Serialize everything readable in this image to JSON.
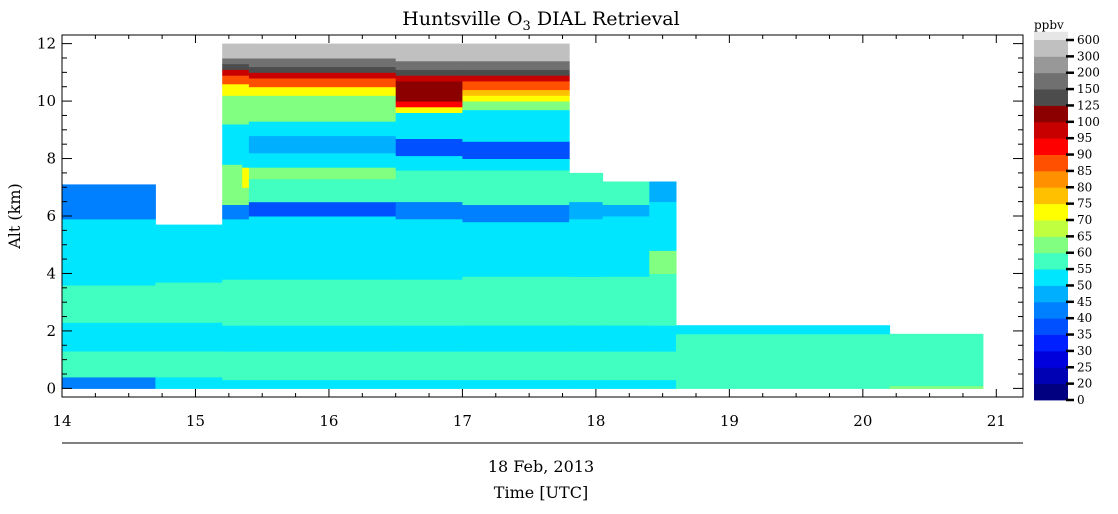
{
  "chart_data": {
    "type": "heatmap",
    "title_prefix": "Huntsville O",
    "title_sub": "3",
    "title_suffix": " DIAL Retrieval",
    "ylabel": "Alt (km)",
    "xlabel_date": "18 Feb, 2013",
    "xlabel": "Time [UTC]",
    "xlim": [
      14,
      21.2
    ],
    "ylim": [
      -0.3,
      12.3
    ],
    "x_ticks": [
      "14",
      "15",
      "16",
      "17",
      "18",
      "19",
      "20",
      "21"
    ],
    "y_ticks": [
      "0",
      "2",
      "4",
      "6",
      "8",
      "10",
      "12"
    ],
    "colorbar": {
      "unit": "ppbv",
      "levels": [
        "0",
        "20",
        "25",
        "30",
        "35",
        "40",
        "45",
        "50",
        "55",
        "60",
        "65",
        "70",
        "75",
        "80",
        "85",
        "90",
        "95",
        "100",
        "125",
        "150",
        "200",
        "300",
        "600"
      ],
      "colors": [
        "#000080",
        "#0000b4",
        "#0000dc",
        "#0020ff",
        "#0050ff",
        "#0080ff",
        "#00b0ff",
        "#00e6ff",
        "#40ffc0",
        "#80ff80",
        "#c0ff40",
        "#ffff00",
        "#ffc000",
        "#ff9000",
        "#ff5000",
        "#ff0000",
        "#c80000",
        "#8c0000",
        "#4c4c4c",
        "#707070",
        "#989898",
        "#c0c0c0",
        "#e6e6e6"
      ]
    },
    "columns": [
      {
        "x0": 14.0,
        "x1": 14.7,
        "top": 7.1,
        "layers": [
          [
            0,
            0.4,
            "#0080ff"
          ],
          [
            0.4,
            1.3,
            "#40ffc0"
          ],
          [
            1.3,
            2.3,
            "#00e6ff"
          ],
          [
            2.3,
            3.6,
            "#40ffc0"
          ],
          [
            3.6,
            5.9,
            "#00e6ff"
          ],
          [
            5.9,
            7.1,
            "#0080ff"
          ]
        ]
      },
      {
        "x0": 14.7,
        "x1": 15.2,
        "top": 5.7,
        "layers": [
          [
            0,
            0.4,
            "#00e6ff"
          ],
          [
            0.4,
            1.3,
            "#40ffc0"
          ],
          [
            1.3,
            2.3,
            "#00e6ff"
          ],
          [
            2.3,
            3.7,
            "#40ffc0"
          ],
          [
            3.7,
            5.7,
            "#00e6ff"
          ]
        ]
      },
      {
        "x0": 15.2,
        "x1": 15.35,
        "top": 12.0,
        "layers": [
          [
            0,
            0.3,
            "#00e6ff"
          ],
          [
            0.3,
            1.3,
            "#40ffc0"
          ],
          [
            1.3,
            2.2,
            "#00e6ff"
          ],
          [
            2.2,
            3.8,
            "#40ffc0"
          ],
          [
            3.8,
            5.9,
            "#00e6ff"
          ],
          [
            5.9,
            6.4,
            "#0080ff"
          ],
          [
            6.4,
            7.8,
            "#80ff80"
          ],
          [
            7.8,
            9.2,
            "#00e6ff"
          ],
          [
            9.2,
            10.2,
            "#80ff80"
          ],
          [
            10.2,
            10.6,
            "#ffff00"
          ],
          [
            10.6,
            10.9,
            "#ff5000"
          ],
          [
            10.9,
            11.1,
            "#c80000"
          ],
          [
            11.1,
            11.3,
            "#4c4c4c"
          ],
          [
            11.3,
            11.5,
            "#707070"
          ],
          [
            11.5,
            12.0,
            "#c0c0c0"
          ]
        ]
      },
      {
        "x0": 15.35,
        "x1": 15.4,
        "top": 12.0,
        "layers": [
          [
            0,
            0.3,
            "#00e6ff"
          ],
          [
            0.3,
            1.3,
            "#40ffc0"
          ],
          [
            1.3,
            2.2,
            "#00e6ff"
          ],
          [
            2.2,
            3.8,
            "#40ffc0"
          ],
          [
            3.8,
            5.9,
            "#00e6ff"
          ],
          [
            5.9,
            6.4,
            "#0080ff"
          ],
          [
            6.4,
            7.0,
            "#80ff80"
          ],
          [
            7.0,
            7.7,
            "#ffff00"
          ],
          [
            7.7,
            9.2,
            "#00e6ff"
          ],
          [
            9.2,
            10.2,
            "#80ff80"
          ],
          [
            10.2,
            10.6,
            "#ffff00"
          ],
          [
            10.6,
            10.9,
            "#ff5000"
          ],
          [
            10.9,
            11.1,
            "#c80000"
          ],
          [
            11.1,
            11.3,
            "#4c4c4c"
          ],
          [
            11.3,
            11.5,
            "#707070"
          ],
          [
            11.5,
            12.0,
            "#c0c0c0"
          ]
        ]
      },
      {
        "x0": 15.4,
        "x1": 16.5,
        "top": 12.0,
        "layers": [
          [
            0,
            0.3,
            "#00e6ff"
          ],
          [
            0.3,
            1.3,
            "#40ffc0"
          ],
          [
            1.3,
            2.2,
            "#00e6ff"
          ],
          [
            2.2,
            3.8,
            "#40ffc0"
          ],
          [
            3.8,
            6.0,
            "#00e6ff"
          ],
          [
            6.0,
            6.5,
            "#0050ff"
          ],
          [
            6.5,
            7.3,
            "#40ffc0"
          ],
          [
            7.3,
            7.7,
            "#80ff80"
          ],
          [
            7.7,
            8.2,
            "#00e6ff"
          ],
          [
            8.2,
            8.8,
            "#00b0ff"
          ],
          [
            8.8,
            9.3,
            "#00e6ff"
          ],
          [
            9.3,
            10.2,
            "#80ff80"
          ],
          [
            10.2,
            10.5,
            "#ffff00"
          ],
          [
            10.5,
            10.8,
            "#ff5000"
          ],
          [
            10.8,
            11.0,
            "#c80000"
          ],
          [
            11.0,
            11.2,
            "#4c4c4c"
          ],
          [
            11.2,
            11.5,
            "#707070"
          ],
          [
            11.5,
            12.0,
            "#c0c0c0"
          ]
        ]
      },
      {
        "x0": 16.5,
        "x1": 17.0,
        "top": 12.0,
        "layers": [
          [
            0,
            0.3,
            "#00e6ff"
          ],
          [
            0.3,
            1.3,
            "#40ffc0"
          ],
          [
            1.3,
            2.2,
            "#00e6ff"
          ],
          [
            2.2,
            3.8,
            "#40ffc0"
          ],
          [
            3.8,
            5.9,
            "#00e6ff"
          ],
          [
            5.9,
            6.5,
            "#0080ff"
          ],
          [
            6.5,
            7.6,
            "#40ffc0"
          ],
          [
            7.6,
            8.1,
            "#00e6ff"
          ],
          [
            8.1,
            8.7,
            "#0050ff"
          ],
          [
            8.7,
            9.6,
            "#00e6ff"
          ],
          [
            9.6,
            9.8,
            "#ffff00"
          ],
          [
            9.8,
            10.0,
            "#ff0000"
          ],
          [
            10.0,
            10.7,
            "#8c0000"
          ],
          [
            10.7,
            10.9,
            "#c80000"
          ],
          [
            10.9,
            11.1,
            "#4c4c4c"
          ],
          [
            11.1,
            11.4,
            "#707070"
          ],
          [
            11.4,
            12.0,
            "#c0c0c0"
          ]
        ]
      },
      {
        "x0": 17.0,
        "x1": 17.8,
        "top": 12.0,
        "layers": [
          [
            0,
            0.3,
            "#00e6ff"
          ],
          [
            0.3,
            1.3,
            "#40ffc0"
          ],
          [
            1.3,
            2.2,
            "#00e6ff"
          ],
          [
            2.2,
            3.9,
            "#40ffc0"
          ],
          [
            3.9,
            5.8,
            "#00e6ff"
          ],
          [
            5.8,
            6.4,
            "#0080ff"
          ],
          [
            6.4,
            7.6,
            "#40ffc0"
          ],
          [
            7.6,
            8.0,
            "#00e6ff"
          ],
          [
            8.0,
            8.6,
            "#0050ff"
          ],
          [
            8.6,
            9.7,
            "#00e6ff"
          ],
          [
            9.7,
            10.0,
            "#80ff80"
          ],
          [
            10.0,
            10.2,
            "#ffff00"
          ],
          [
            10.2,
            10.4,
            "#ffc000"
          ],
          [
            10.4,
            10.7,
            "#ff5000"
          ],
          [
            10.7,
            10.9,
            "#c80000"
          ],
          [
            10.9,
            11.1,
            "#4c4c4c"
          ],
          [
            11.1,
            11.4,
            "#707070"
          ],
          [
            11.4,
            12.0,
            "#c0c0c0"
          ]
        ]
      },
      {
        "x0": 17.8,
        "x1": 18.05,
        "top": 7.5,
        "layers": [
          [
            0,
            0.3,
            "#00e6ff"
          ],
          [
            0.3,
            1.3,
            "#40ffc0"
          ],
          [
            1.3,
            2.2,
            "#00e6ff"
          ],
          [
            2.2,
            3.9,
            "#40ffc0"
          ],
          [
            3.9,
            5.9,
            "#00e6ff"
          ],
          [
            5.9,
            6.5,
            "#00b0ff"
          ],
          [
            6.5,
            7.5,
            "#40ffc0"
          ]
        ]
      },
      {
        "x0": 18.05,
        "x1": 18.4,
        "top": 7.2,
        "layers": [
          [
            0,
            0.3,
            "#00e6ff"
          ],
          [
            0.3,
            1.3,
            "#40ffc0"
          ],
          [
            1.3,
            2.2,
            "#00e6ff"
          ],
          [
            2.2,
            3.9,
            "#40ffc0"
          ],
          [
            3.9,
            6.0,
            "#00e6ff"
          ],
          [
            6.0,
            6.4,
            "#00b0ff"
          ],
          [
            6.4,
            7.2,
            "#40ffc0"
          ]
        ]
      },
      {
        "x0": 18.4,
        "x1": 18.6,
        "top": 7.2,
        "layers": [
          [
            0,
            0.3,
            "#00e6ff"
          ],
          [
            0.3,
            1.3,
            "#40ffc0"
          ],
          [
            1.3,
            2.2,
            "#00e6ff"
          ],
          [
            2.2,
            4.0,
            "#40ffc0"
          ],
          [
            4.0,
            4.8,
            "#80ff80"
          ],
          [
            4.8,
            6.5,
            "#00e6ff"
          ],
          [
            6.5,
            7.2,
            "#00b0ff"
          ]
        ]
      },
      {
        "x0": 18.6,
        "x1": 20.2,
        "top": 2.2,
        "layers": [
          [
            0,
            0.3,
            "#40ffc0"
          ],
          [
            0.3,
            1.9,
            "#40ffc0"
          ],
          [
            1.9,
            2.2,
            "#00e6ff"
          ]
        ]
      },
      {
        "x0": 20.2,
        "x1": 20.9,
        "top": 1.9,
        "layers": [
          [
            0,
            0.1,
            "#80ff80"
          ],
          [
            0.1,
            1.9,
            "#40ffc0"
          ]
        ]
      }
    ]
  }
}
